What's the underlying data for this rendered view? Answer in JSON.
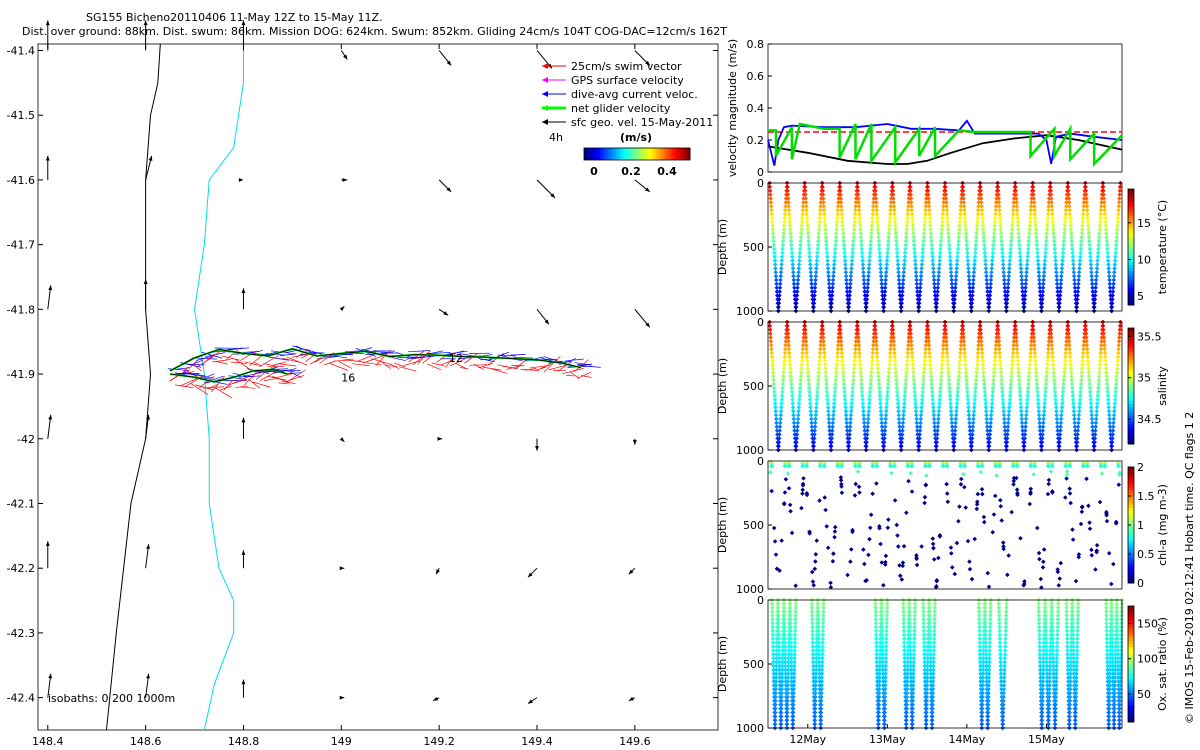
{
  "header": {
    "line1": "SG155 Bicheno20110406 11-May 12Z to 15-May 11Z.",
    "line2": "Dist. over ground: 88km. Dist. swum: 86km. Mission DOG: 624km. Swum: 852km. Gliding 24cm/s 104T COG-DAC=12cm/s 162T"
  },
  "credit": "© IMOS 15-Feb-2019 02:12:41 Hobart time. QC flags 1 2",
  "colors": {
    "swim": "#ff0000",
    "gps": "#ff00ff",
    "dive": "#0000ff",
    "net": "#00ff00",
    "sfc": "#000000",
    "coast": "#00e0e8"
  },
  "chart_data": [
    {
      "type": "scatter",
      "name": "track-map",
      "xlim": [
        148.38,
        149.77
      ],
      "ylim": [
        -42.45,
        -41.39
      ],
      "x_ticks": [
        "148.4",
        "148.6",
        "148.8",
        "149",
        "149.2",
        "149.4",
        "149.6"
      ],
      "y_ticks": [
        "-41.4",
        "-41.5",
        "-41.6",
        "-41.7",
        "-41.8",
        "-41.9",
        "-42",
        "-42.1",
        "-42.2",
        "-42.3",
        "-42.4"
      ],
      "legend": {
        "items": [
          "25cm/s swim vector",
          "GPS surface velocity",
          "dive-avg current veloc.",
          "net glider velocity",
          "sfc geo. vel. 15-May-2011"
        ],
        "interval_label": "4h",
        "colorbar_unit": "(m/s)",
        "colorbar_ticks": [
          "0",
          "0.2",
          "0.4"
        ]
      },
      "isobaths_label": "isobaths: 0    200  1000m",
      "track_labels": [
        {
          "text": "12",
          "lon": 149.22,
          "lat": -41.875
        },
        {
          "text": "16",
          "lon": 149.0,
          "lat": -41.905
        }
      ],
      "track": {
        "upper_lon": [
          148.65,
          148.7,
          148.75,
          148.8,
          148.85,
          148.9,
          148.95,
          149.0,
          149.05,
          149.1,
          149.15,
          149.2,
          149.25,
          149.3,
          149.35,
          149.4,
          149.45,
          149.49
        ],
        "upper_lat": [
          -41.895,
          -41.875,
          -41.862,
          -41.868,
          -41.872,
          -41.861,
          -41.872,
          -41.868,
          -41.865,
          -41.873,
          -41.87,
          -41.871,
          -41.873,
          -41.874,
          -41.876,
          -41.878,
          -41.883,
          -41.89
        ],
        "lower_lon": [
          148.65,
          148.7,
          148.74,
          148.78,
          148.82,
          148.86,
          148.89
        ],
        "lower_lat": [
          -41.9,
          -41.905,
          -41.912,
          -41.905,
          -41.895,
          -41.893,
          -41.9
        ]
      },
      "coastline": {
        "lon": [
          148.63,
          148.625,
          148.61,
          148.6,
          148.6,
          148.6,
          148.61,
          148.6,
          148.57,
          148.54,
          148.52
        ],
        "lat": [
          -41.39,
          -41.45,
          -41.5,
          -41.6,
          -41.7,
          -41.8,
          -41.9,
          -42.0,
          -42.1,
          -42.3,
          -42.45
        ]
      },
      "isobath": {
        "lon": [
          148.8,
          148.8,
          148.78,
          148.73,
          148.72,
          148.7,
          148.72,
          148.73,
          148.73,
          148.75,
          148.78,
          148.78,
          148.74,
          148.72
        ],
        "lat": [
          -41.39,
          -41.45,
          -41.55,
          -41.6,
          -41.7,
          -41.8,
          -41.9,
          -42.0,
          -42.1,
          -42.2,
          -42.25,
          -42.3,
          -42.38,
          -42.45
        ]
      },
      "surface_vectors": {
        "lons": [
          148.4,
          148.6,
          148.8,
          149.0,
          149.2,
          149.4,
          149.6
        ],
        "lats": [
          -41.4,
          -41.6,
          -41.8,
          -42.0,
          -42.2,
          -42.4
        ],
        "u": [
          [
            0,
            0,
            0,
            0.02,
            0.04,
            0.05,
            0.05
          ],
          [
            0,
            0.02,
            0,
            0.02,
            0.04,
            0.06,
            0.05
          ],
          [
            0.01,
            0,
            0,
            0.01,
            0.03,
            0.04,
            0.05
          ],
          [
            0.01,
            0.01,
            0,
            0.01,
            0.01,
            0,
            0
          ],
          [
            0,
            0.01,
            0,
            0.01,
            -0.01,
            -0.03,
            -0.02
          ],
          [
            0.01,
            0.01,
            0,
            0.01,
            -0.02,
            -0.03,
            -0.02
          ]
        ],
        "v": [
          [
            0.1,
            0.1,
            0.1,
            -0.03,
            -0.05,
            -0.06,
            -0.05
          ],
          [
            0.08,
            0.08,
            0,
            0,
            -0.04,
            -0.06,
            -0.04
          ],
          [
            0.08,
            0.1,
            0.07,
            0.01,
            -0.02,
            -0.05,
            -0.06
          ],
          [
            0.08,
            0.08,
            0.07,
            -0.01,
            0,
            -0.04,
            -0.02
          ],
          [
            0.09,
            0.08,
            0.06,
            0,
            -0.02,
            -0.03,
            -0.02
          ],
          [
            0.08,
            0.08,
            0.06,
            0,
            -0.01,
            -0.02,
            -0.01
          ]
        ]
      }
    },
    {
      "type": "line",
      "name": "velocity-magnitude",
      "ylabel": "velocity magnitude (m/s)",
      "ylim": [
        0,
        0.8
      ],
      "y_ticks": [
        "0",
        "0.2",
        "0.4",
        "0.6",
        "0.8"
      ],
      "xlim_days": [
        11.5,
        15.95
      ],
      "series": [
        {
          "name": "25cm/s swim vector",
          "color": "#ff0000",
          "style": "dashed",
          "x": [
            11.5,
            15.95
          ],
          "y": [
            0.25,
            0.25
          ]
        },
        {
          "name": "sfc geo. vel.",
          "color": "#000000",
          "x": [
            11.5,
            12.0,
            12.5,
            13.0,
            13.25,
            13.5,
            13.8,
            14.2,
            14.6,
            15.0,
            15.4,
            15.95
          ],
          "y": [
            0.16,
            0.12,
            0.07,
            0.05,
            0.05,
            0.07,
            0.12,
            0.18,
            0.21,
            0.23,
            0.2,
            0.14
          ]
        },
        {
          "name": "dive-avg current veloc.",
          "color": "#0000ff",
          "x": [
            11.5,
            11.58,
            11.63,
            11.7,
            11.8,
            12.2,
            12.6,
            13.0,
            13.3,
            13.6,
            13.9,
            14.0,
            14.1,
            14.3,
            14.6,
            14.9,
            15.0,
            15.06,
            15.12,
            15.3,
            15.6,
            15.95
          ],
          "y": [
            0.2,
            0.04,
            0.2,
            0.28,
            0.29,
            0.28,
            0.28,
            0.3,
            0.27,
            0.27,
            0.26,
            0.32,
            0.24,
            0.24,
            0.24,
            0.24,
            0.2,
            0.05,
            0.22,
            0.24,
            0.22,
            0.2
          ]
        },
        {
          "name": "net glider velocity",
          "color": "#00dd00",
          "x": [
            11.5,
            11.6,
            11.6,
            11.8,
            11.8,
            11.9,
            12.2,
            12.4,
            12.4,
            12.6,
            12.6,
            12.8,
            12.8,
            13.1,
            13.1,
            13.4,
            13.4,
            13.6,
            13.6,
            13.9,
            14.1,
            14.4,
            14.6,
            14.8,
            14.8,
            15.1,
            15.1,
            15.3,
            15.3,
            15.6,
            15.6,
            15.95
          ],
          "y": [
            0.26,
            0.26,
            0.1,
            0.28,
            0.08,
            0.3,
            0.27,
            0.27,
            0.09,
            0.3,
            0.08,
            0.3,
            0.07,
            0.28,
            0.06,
            0.27,
            0.1,
            0.28,
            0.1,
            0.26,
            0.25,
            0.25,
            0.25,
            0.25,
            0.1,
            0.27,
            0.1,
            0.27,
            0.08,
            0.24,
            0.05,
            0.23
          ]
        }
      ]
    },
    {
      "type": "scatter",
      "name": "temperature-section",
      "ylabel": "Depth (m)",
      "colorbar_label": "temperature (°C)",
      "clim": [
        3.8,
        19.6
      ],
      "colorbar_ticks": [
        "5",
        "10",
        "15"
      ],
      "colorbar_tick_values": [
        5,
        10,
        15
      ],
      "y_ticks": [
        "0",
        "500",
        "1000"
      ],
      "ylim": [
        1000,
        0
      ],
      "xlim_days": [
        11.5,
        15.95
      ],
      "n_dives": 20,
      "profile_model": "linear_decrease_with_depth",
      "surface_value": 18.5,
      "bottom_value": 4.2
    },
    {
      "type": "scatter",
      "name": "salinity-section",
      "ylabel": "Depth (m)",
      "colorbar_label": "salinity",
      "clim": [
        34.2,
        35.6
      ],
      "colorbar_ticks": [
        "34.5",
        "35",
        "35.5"
      ],
      "colorbar_tick_values": [
        34.5,
        35,
        35.5
      ],
      "y_ticks": [
        "0",
        "500",
        "1000"
      ],
      "ylim": [
        1000,
        0
      ],
      "xlim_days": [
        11.5,
        15.95
      ],
      "n_dives": 20,
      "profile_model": "linear_decrease_with_depth",
      "surface_value": 35.5,
      "bottom_value": 34.35
    },
    {
      "type": "scatter",
      "name": "chlorophyll-section",
      "ylabel": "Depth (m)",
      "colorbar_label": "chl-a (mg m-3)",
      "clim": [
        0,
        2
      ],
      "colorbar_ticks": [
        "0",
        "0.5",
        "1",
        "1.5",
        "2"
      ],
      "colorbar_tick_values": [
        0,
        0.5,
        1,
        1.5,
        2
      ],
      "y_ticks": [
        "0",
        "500",
        "1000"
      ],
      "ylim": [
        1000,
        0
      ],
      "xlim_days": [
        11.5,
        15.95
      ],
      "n_dives": 20,
      "profile_model": "surface_maximum",
      "surface_value": 0.9,
      "bottom_value": 0.02
    },
    {
      "type": "scatter",
      "name": "oxygen-section",
      "ylabel": "Depth (m)",
      "colorbar_label": "Ox. sat. ratio (%)",
      "clim": [
        10,
        175
      ],
      "colorbar_ticks": [
        "50",
        "100",
        "150"
      ],
      "colorbar_tick_values": [
        50,
        100,
        150
      ],
      "y_ticks": [
        "0",
        "500",
        "1000"
      ],
      "ylim": [
        1000,
        0
      ],
      "xlim_days": [
        11.5,
        15.95
      ],
      "x_ticks": [
        "12May",
        "13May",
        "14May",
        "15May"
      ],
      "x_tick_values": [
        12,
        13,
        14,
        15
      ],
      "dive_groups": [
        [
          11.55,
          11.85
        ],
        [
          12.05,
          12.2
        ],
        [
          12.85,
          13.0
        ],
        [
          13.2,
          13.35
        ],
        [
          13.45,
          13.6
        ],
        [
          14.15,
          14.3
        ],
        [
          14.4,
          14.5
        ],
        [
          14.9,
          15.15
        ],
        [
          15.25,
          15.4
        ],
        [
          15.75,
          15.95
        ]
      ],
      "profile_model": "linear_decrease_with_depth",
      "surface_value": 95,
      "bottom_value": 45
    }
  ]
}
